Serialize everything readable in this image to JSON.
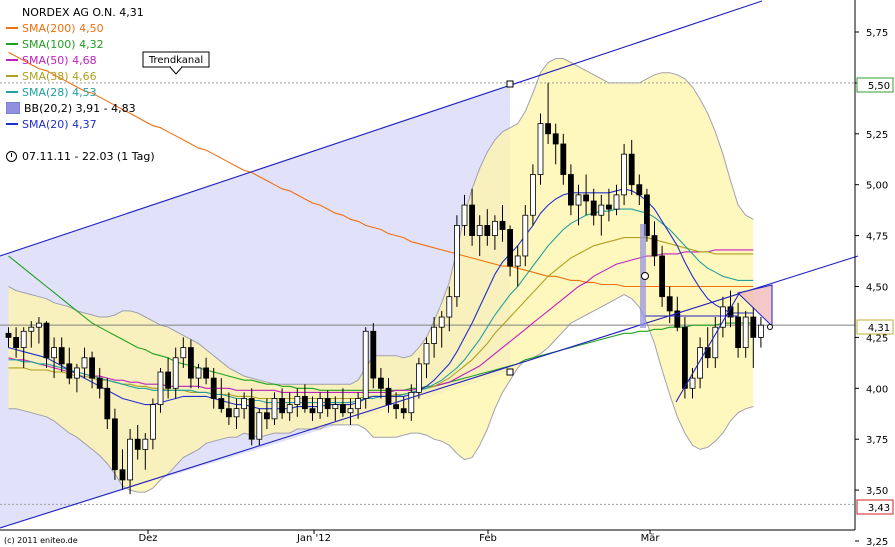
{
  "legend": {
    "title": "NORDEX AG O.N. 4,31",
    "items": [
      {
        "label": "SMA(200) 4,50",
        "color": "#f07010",
        "kind": "line"
      },
      {
        "label": "SMA(100) 4,32",
        "color": "#20a020",
        "kind": "line"
      },
      {
        "label": "SMA(50) 4,68",
        "color": "#c020c0",
        "kind": "line"
      },
      {
        "label": "SMA(38) 4,66",
        "color": "#b0a020",
        "kind": "line"
      },
      {
        "label": "SMA(28) 4,53",
        "color": "#20a0a0",
        "kind": "line"
      },
      {
        "label": "BB(20,2) 3,91 - 4,83",
        "color": "#9090e0",
        "kind": "box"
      },
      {
        "label": "SMA(20) 4,37",
        "color": "#2030d0",
        "kind": "line"
      }
    ]
  },
  "period": "07.11.11 - 22.03 (1 Tag)",
  "copyright": "(c) 2011 eniteo.de",
  "annotation": "Trendkanal",
  "price_tags": {
    "high": "5,50",
    "last": "4,31",
    "low": "3,43"
  },
  "chart_data": {
    "type": "candlestick",
    "title": "NORDEX AG O.N. 4,31",
    "x_ticks": [
      "Dez",
      "Jan '12",
      "Feb",
      "Mär"
    ],
    "y_ticks": [
      "5,75",
      "5,50",
      "5,25",
      "5,00",
      "4,75",
      "4,50",
      "4,25",
      "4,00",
      "3,75",
      "3,50",
      "3,25"
    ],
    "ylim": [
      3.25,
      5.85
    ],
    "candles": [
      [
        4.27,
        4.3,
        4.2,
        4.25
      ],
      [
        4.25,
        4.3,
        4.15,
        4.2
      ],
      [
        4.2,
        4.3,
        4.1,
        4.28
      ],
      [
        4.28,
        4.33,
        4.2,
        4.3
      ],
      [
        4.3,
        4.35,
        4.22,
        4.32
      ],
      [
        4.32,
        4.33,
        4.1,
        4.15
      ],
      [
        4.15,
        4.25,
        4.05,
        4.2
      ],
      [
        4.2,
        4.25,
        4.08,
        4.12
      ],
      [
        4.12,
        4.2,
        4.02,
        4.05
      ],
      [
        4.05,
        4.12,
        3.98,
        4.1
      ],
      [
        4.1,
        4.2,
        4.05,
        4.15
      ],
      [
        4.15,
        4.18,
        4.0,
        4.05
      ],
      [
        4.05,
        4.1,
        3.95,
        4.0
      ],
      [
        4.0,
        4.05,
        3.8,
        3.85
      ],
      [
        3.85,
        3.9,
        3.55,
        3.6
      ],
      [
        3.6,
        3.7,
        3.5,
        3.55
      ],
      [
        3.55,
        3.8,
        3.48,
        3.75
      ],
      [
        3.75,
        3.82,
        3.65,
        3.7
      ],
      [
        3.7,
        3.78,
        3.6,
        3.75
      ],
      [
        3.75,
        3.95,
        3.7,
        3.92
      ],
      [
        3.92,
        4.1,
        3.88,
        4.08
      ],
      [
        4.08,
        4.15,
        3.95,
        4.0
      ],
      [
        4.0,
        4.2,
        3.95,
        4.15
      ],
      [
        4.15,
        4.25,
        4.1,
        4.2
      ],
      [
        4.2,
        4.24,
        4.0,
        4.05
      ],
      [
        4.05,
        4.12,
        4.0,
        4.1
      ],
      [
        4.1,
        4.15,
        4.02,
        4.05
      ],
      [
        4.05,
        4.1,
        3.9,
        3.95
      ],
      [
        3.95,
        4.05,
        3.88,
        3.9
      ],
      [
        3.9,
        3.98,
        3.82,
        3.86
      ],
      [
        3.86,
        3.95,
        3.8,
        3.9
      ],
      [
        3.9,
        3.98,
        3.85,
        3.95
      ],
      [
        3.95,
        4.0,
        3.72,
        3.75
      ],
      [
        3.75,
        3.9,
        3.72,
        3.88
      ],
      [
        3.88,
        3.95,
        3.8,
        3.85
      ],
      [
        3.85,
        3.98,
        3.82,
        3.95
      ],
      [
        3.95,
        4.0,
        3.85,
        3.88
      ],
      [
        3.88,
        3.98,
        3.84,
        3.92
      ],
      [
        3.92,
        4.0,
        3.86,
        3.96
      ],
      [
        3.96,
        4.02,
        3.88,
        3.9
      ],
      [
        3.9,
        3.96,
        3.84,
        3.88
      ],
      [
        3.88,
        3.98,
        3.85,
        3.95
      ],
      [
        3.95,
        3.99,
        3.86,
        3.9
      ],
      [
        3.9,
        3.96,
        3.84,
        3.92
      ],
      [
        3.92,
        4.0,
        3.86,
        3.88
      ],
      [
        3.88,
        3.95,
        3.82,
        3.9
      ],
      [
        3.9,
        3.98,
        3.85,
        3.95
      ],
      [
        3.95,
        4.3,
        3.9,
        4.28
      ],
      [
        4.28,
        4.32,
        4.0,
        4.05
      ],
      [
        4.05,
        4.1,
        3.95,
        4.0
      ],
      [
        4.0,
        4.05,
        3.88,
        3.92
      ],
      [
        3.92,
        3.98,
        3.85,
        3.9
      ],
      [
        3.9,
        3.96,
        3.85,
        3.88
      ],
      [
        3.88,
        4.02,
        3.84,
        3.98
      ],
      [
        3.98,
        4.15,
        3.95,
        4.12
      ],
      [
        4.12,
        4.25,
        4.05,
        4.22
      ],
      [
        4.22,
        4.35,
        4.15,
        4.3
      ],
      [
        4.3,
        4.38,
        4.2,
        4.35
      ],
      [
        4.35,
        4.5,
        4.28,
        4.45
      ],
      [
        4.45,
        4.85,
        4.4,
        4.8
      ],
      [
        4.8,
        4.95,
        4.75,
        4.9
      ],
      [
        4.9,
        4.98,
        4.7,
        4.75
      ],
      [
        4.75,
        4.85,
        4.65,
        4.8
      ],
      [
        4.8,
        4.88,
        4.7,
        4.75
      ],
      [
        4.75,
        4.85,
        4.68,
        4.82
      ],
      [
        4.82,
        4.9,
        4.72,
        4.78
      ],
      [
        4.78,
        4.8,
        4.55,
        4.6
      ],
      [
        4.6,
        4.7,
        4.5,
        4.65
      ],
      [
        4.65,
        4.9,
        4.6,
        4.85
      ],
      [
        4.85,
        5.1,
        4.8,
        5.05
      ],
      [
        5.05,
        5.35,
        5.0,
        5.3
      ],
      [
        5.3,
        5.5,
        5.2,
        5.25
      ],
      [
        5.25,
        5.3,
        5.1,
        5.2
      ],
      [
        5.2,
        5.25,
        5.0,
        5.05
      ],
      [
        5.05,
        5.1,
        4.85,
        4.9
      ],
      [
        4.9,
        5.0,
        4.8,
        4.95
      ],
      [
        4.95,
        5.05,
        4.85,
        4.92
      ],
      [
        4.92,
        4.98,
        4.8,
        4.85
      ],
      [
        4.85,
        4.95,
        4.75,
        4.9
      ],
      [
        4.9,
        4.98,
        4.82,
        4.88
      ],
      [
        4.88,
        5.0,
        4.85,
        4.95
      ],
      [
        4.95,
        5.2,
        4.9,
        5.15
      ],
      [
        5.15,
        5.22,
        4.95,
        5.0
      ],
      [
        5.0,
        5.05,
        4.9,
        4.95
      ],
      [
        4.95,
        4.98,
        4.72,
        4.75
      ],
      [
        4.75,
        4.82,
        4.6,
        4.65
      ],
      [
        4.65,
        4.7,
        4.4,
        4.45
      ],
      [
        4.45,
        4.5,
        4.32,
        4.38
      ],
      [
        4.38,
        4.45,
        4.28,
        4.3
      ],
      [
        4.3,
        4.35,
        3.95,
        4.0
      ],
      [
        4.0,
        4.1,
        3.95,
        4.05
      ],
      [
        4.05,
        4.25,
        4.0,
        4.2
      ],
      [
        4.2,
        4.3,
        4.1,
        4.15
      ],
      [
        4.15,
        4.35,
        4.1,
        4.3
      ],
      [
        4.3,
        4.45,
        4.25,
        4.4
      ],
      [
        4.4,
        4.48,
        4.3,
        4.35
      ],
      [
        4.35,
        4.42,
        4.15,
        4.2
      ],
      [
        4.2,
        4.38,
        4.15,
        4.35
      ],
      [
        4.35,
        4.4,
        4.1,
        4.25
      ],
      [
        4.25,
        4.35,
        4.2,
        4.31
      ]
    ],
    "sma20": [
      4.2,
      4.19,
      4.18,
      4.17,
      4.16,
      4.15,
      4.13,
      4.11,
      4.09,
      4.07,
      4.05,
      4.03,
      4.01,
      3.99,
      3.97,
      3.95,
      3.94,
      3.93,
      3.92,
      3.92,
      3.93,
      3.94,
      3.95,
      3.96,
      3.96,
      3.96,
      3.96,
      3.95,
      3.94,
      3.93,
      3.92,
      3.92,
      3.91,
      3.9,
      3.9,
      3.9,
      3.9,
      3.9,
      3.91,
      3.91,
      3.91,
      3.91,
      3.92,
      3.92,
      3.92,
      3.92,
      3.93,
      3.95,
      3.96,
      3.96,
      3.96,
      3.96,
      3.96,
      3.97,
      3.99,
      4.01,
      4.04,
      4.08,
      4.12,
      4.18,
      4.25,
      4.32,
      4.4,
      4.48,
      4.56,
      4.62,
      4.66,
      4.7,
      4.75,
      4.8,
      4.86,
      4.9,
      4.93,
      4.95,
      4.96,
      4.96,
      4.96,
      4.96,
      4.96,
      4.96,
      4.97,
      4.98,
      4.97,
      4.95,
      4.92,
      4.88,
      4.82,
      4.76,
      4.7,
      4.62,
      4.55,
      4.49,
      4.44,
      4.41,
      4.39,
      4.37,
      4.37,
      4.37,
      4.37
    ],
    "sma28": [
      4.14,
      4.14,
      4.13,
      4.13,
      4.12,
      4.12,
      4.11,
      4.1,
      4.09,
      4.08,
      4.07,
      4.06,
      4.05,
      4.04,
      4.03,
      4.02,
      4.01,
      4.0,
      4.0,
      3.99,
      3.99,
      3.99,
      3.99,
      3.99,
      3.99,
      3.98,
      3.98,
      3.97,
      3.97,
      3.96,
      3.95,
      3.95,
      3.94,
      3.94,
      3.93,
      3.93,
      3.93,
      3.93,
      3.93,
      3.93,
      3.93,
      3.93,
      3.93,
      3.93,
      3.93,
      3.93,
      3.94,
      3.95,
      3.95,
      3.96,
      3.96,
      3.96,
      3.97,
      3.98,
      3.99,
      4.0,
      4.02,
      4.04,
      4.07,
      4.1,
      4.14,
      4.19,
      4.24,
      4.3,
      4.36,
      4.41,
      4.46,
      4.5,
      4.55,
      4.6,
      4.65,
      4.7,
      4.74,
      4.78,
      4.81,
      4.83,
      4.85,
      4.86,
      4.87,
      4.87,
      4.88,
      4.88,
      4.88,
      4.87,
      4.86,
      4.84,
      4.81,
      4.78,
      4.74,
      4.7,
      4.66,
      4.62,
      4.59,
      4.57,
      4.55,
      4.54,
      4.53,
      4.53,
      4.53
    ],
    "sma38": [
      4.1,
      4.1,
      4.1,
      4.09,
      4.09,
      4.09,
      4.08,
      4.08,
      4.07,
      4.06,
      4.06,
      4.05,
      4.04,
      4.04,
      4.03,
      4.02,
      4.02,
      4.01,
      4.01,
      4.0,
      4.0,
      3.99,
      3.99,
      3.99,
      3.98,
      3.98,
      3.98,
      3.97,
      3.97,
      3.97,
      3.96,
      3.96,
      3.96,
      3.95,
      3.95,
      3.95,
      3.95,
      3.95,
      3.95,
      3.95,
      3.95,
      3.95,
      3.95,
      3.95,
      3.95,
      3.95,
      3.95,
      3.96,
      3.96,
      3.96,
      3.96,
      3.97,
      3.97,
      3.98,
      3.99,
      4.0,
      4.01,
      4.03,
      4.05,
      4.08,
      4.11,
      4.14,
      4.18,
      4.22,
      4.27,
      4.31,
      4.35,
      4.39,
      4.43,
      4.47,
      4.51,
      4.55,
      4.58,
      4.61,
      4.64,
      4.66,
      4.68,
      4.7,
      4.71,
      4.72,
      4.73,
      4.74,
      4.74,
      4.74,
      4.74,
      4.73,
      4.72,
      4.71,
      4.7,
      4.69,
      4.68,
      4.67,
      4.67,
      4.66,
      4.66,
      4.66,
      4.66,
      4.66,
      4.66
    ],
    "sma50": [
      4.15,
      4.14,
      4.14,
      4.13,
      4.12,
      4.11,
      4.1,
      4.09,
      4.08,
      4.08,
      4.07,
      4.06,
      4.06,
      4.05,
      4.04,
      4.04,
      4.03,
      4.03,
      4.02,
      4.02,
      4.02,
      4.01,
      4.01,
      4.01,
      4.01,
      4.01,
      4.0,
      4.0,
      4.0,
      4.0,
      3.99,
      3.99,
      3.99,
      3.99,
      3.99,
      3.99,
      3.98,
      3.98,
      3.98,
      3.98,
      3.98,
      3.98,
      3.98,
      3.98,
      3.98,
      3.98,
      3.98,
      3.98,
      3.98,
      3.98,
      3.98,
      3.99,
      3.99,
      3.99,
      4.0,
      4.0,
      4.01,
      4.02,
      4.03,
      4.05,
      4.07,
      4.09,
      4.11,
      4.14,
      4.17,
      4.2,
      4.23,
      4.26,
      4.29,
      4.32,
      4.35,
      4.38,
      4.41,
      4.44,
      4.47,
      4.5,
      4.52,
      4.55,
      4.57,
      4.59,
      4.61,
      4.62,
      4.63,
      4.64,
      4.65,
      4.65,
      4.66,
      4.66,
      4.66,
      4.67,
      4.67,
      4.67,
      4.67,
      4.68,
      4.68,
      4.68,
      4.68,
      4.68,
      4.68
    ],
    "sma100": [
      4.65,
      4.62,
      4.59,
      4.56,
      4.53,
      4.5,
      4.47,
      4.44,
      4.41,
      4.38,
      4.35,
      4.32,
      4.3,
      4.28,
      4.26,
      4.24,
      4.22,
      4.2,
      4.19,
      4.17,
      4.16,
      4.15,
      4.13,
      4.12,
      4.11,
      4.1,
      4.09,
      4.08,
      4.07,
      4.06,
      4.05,
      4.04,
      4.04,
      4.03,
      4.02,
      4.02,
      4.01,
      4.01,
      4.0,
      4.0,
      4.0,
      3.99,
      3.99,
      3.99,
      3.99,
      3.99,
      3.99,
      3.99,
      3.99,
      3.99,
      3.99,
      3.99,
      3.99,
      4.0,
      4.0,
      4.01,
      4.01,
      4.02,
      4.03,
      4.04,
      4.05,
      4.06,
      4.07,
      4.08,
      4.09,
      4.1,
      4.11,
      4.12,
      4.14,
      4.15,
      4.16,
      4.17,
      4.18,
      4.19,
      4.2,
      4.21,
      4.22,
      4.23,
      4.24,
      4.25,
      4.26,
      4.27,
      4.27,
      4.28,
      4.28,
      4.29,
      4.29,
      4.3,
      4.3,
      4.3,
      4.31,
      4.31,
      4.31,
      4.31,
      4.32,
      4.32,
      4.32,
      4.32,
      4.32
    ],
    "sma200": [
      5.65,
      5.63,
      5.61,
      5.59,
      5.57,
      5.56,
      5.54,
      5.52,
      5.5,
      5.48,
      5.46,
      5.45,
      5.43,
      5.41,
      5.39,
      5.37,
      5.35,
      5.33,
      5.31,
      5.29,
      5.28,
      5.26,
      5.24,
      5.22,
      5.2,
      5.18,
      5.17,
      5.15,
      5.13,
      5.11,
      5.09,
      5.07,
      5.06,
      5.04,
      5.02,
      5.0,
      4.98,
      4.97,
      4.95,
      4.93,
      4.91,
      4.9,
      4.88,
      4.86,
      4.85,
      4.83,
      4.82,
      4.8,
      4.79,
      4.78,
      4.76,
      4.75,
      4.74,
      4.72,
      4.71,
      4.7,
      4.69,
      4.68,
      4.67,
      4.66,
      4.65,
      4.64,
      4.63,
      4.62,
      4.61,
      4.6,
      4.6,
      4.59,
      4.58,
      4.57,
      4.56,
      4.55,
      4.55,
      4.54,
      4.53,
      4.53,
      4.52,
      4.52,
      4.51,
      4.51,
      4.51,
      4.5,
      4.5,
      4.5,
      4.5,
      4.5,
      4.5,
      4.5,
      4.5,
      4.5,
      4.5,
      4.5,
      4.5,
      4.5,
      4.5,
      4.5,
      4.5,
      4.5,
      4.5
    ],
    "bb_upper": [
      4.5,
      4.48,
      4.47,
      4.46,
      4.45,
      4.44,
      4.42,
      4.41,
      4.4,
      4.38,
      4.37,
      4.36,
      4.35,
      4.35,
      4.36,
      4.38,
      4.38,
      4.37,
      4.35,
      4.33,
      4.31,
      4.3,
      4.28,
      4.26,
      4.24,
      4.22,
      4.19,
      4.16,
      4.13,
      4.1,
      4.08,
      4.06,
      4.05,
      4.04,
      4.03,
      4.02,
      4.02,
      4.02,
      4.02,
      4.02,
      4.02,
      4.02,
      4.02,
      4.02,
      4.02,
      4.02,
      4.04,
      4.1,
      4.16,
      4.16,
      4.16,
      4.16,
      4.15,
      4.16,
      4.2,
      4.25,
      4.33,
      4.42,
      4.52,
      4.68,
      4.85,
      4.98,
      5.08,
      5.16,
      5.22,
      5.26,
      5.28,
      5.3,
      5.36,
      5.45,
      5.55,
      5.6,
      5.62,
      5.62,
      5.6,
      5.58,
      5.56,
      5.54,
      5.52,
      5.5,
      5.5,
      5.5,
      5.5,
      5.5,
      5.52,
      5.54,
      5.55,
      5.55,
      5.54,
      5.52,
      5.48,
      5.42,
      5.35,
      5.26,
      5.15,
      5.02,
      4.9,
      4.85,
      4.83
    ],
    "bb_lower": [
      3.9,
      3.9,
      3.89,
      3.88,
      3.87,
      3.86,
      3.84,
      3.81,
      3.78,
      3.76,
      3.73,
      3.7,
      3.67,
      3.63,
      3.58,
      3.52,
      3.5,
      3.49,
      3.49,
      3.51,
      3.55,
      3.58,
      3.62,
      3.66,
      3.68,
      3.7,
      3.73,
      3.74,
      3.75,
      3.76,
      3.76,
      3.78,
      3.77,
      3.76,
      3.77,
      3.78,
      3.78,
      3.78,
      3.8,
      3.8,
      3.8,
      3.8,
      3.82,
      3.82,
      3.82,
      3.82,
      3.82,
      3.8,
      3.76,
      3.76,
      3.76,
      3.76,
      3.77,
      3.78,
      3.78,
      3.77,
      3.75,
      3.74,
      3.72,
      3.68,
      3.65,
      3.66,
      3.72,
      3.8,
      3.9,
      3.98,
      4.04,
      4.1,
      4.14,
      4.15,
      4.17,
      4.2,
      4.24,
      4.28,
      4.32,
      4.34,
      4.36,
      4.38,
      4.4,
      4.42,
      4.44,
      4.46,
      4.44,
      4.4,
      4.32,
      4.22,
      4.09,
      3.97,
      3.86,
      3.78,
      3.72,
      3.7,
      3.71,
      3.74,
      3.78,
      3.84,
      3.88,
      3.9,
      3.91
    ]
  }
}
